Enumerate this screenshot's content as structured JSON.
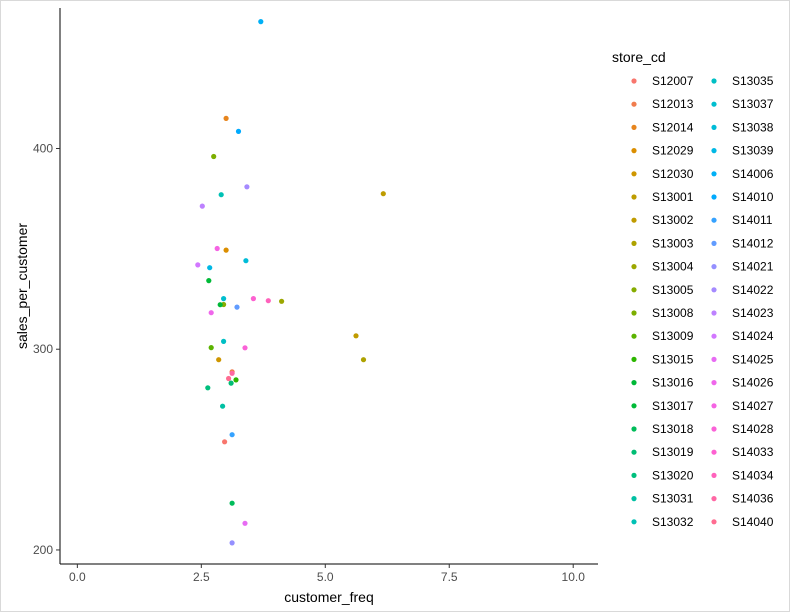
{
  "chart_data": {
    "type": "scatter",
    "title": "",
    "xlabel": "customer_freq",
    "ylabel": "sales_per_customer",
    "xlim": [
      -0.35,
      10.5
    ],
    "ylim": [
      193,
      470
    ],
    "xticks": [
      0,
      2.5,
      5,
      7.5,
      10
    ],
    "xtick_labels": [
      "0.0",
      "2.5",
      "5.0",
      "7.5",
      "10.0"
    ],
    "yticks": [
      200,
      300,
      400
    ],
    "ytick_labels": [
      "200",
      "300",
      "400"
    ],
    "grid": false,
    "legend": {
      "title": "store_cd",
      "placement": "right",
      "columns": 2
    },
    "series": [
      {
        "name": "S12007",
        "color": "#F8766D",
        "points": [
          [
            2.97,
            253.9
          ]
        ]
      },
      {
        "name": "S12013",
        "color": "#F07C4E",
        "points": [
          [
            3.12,
            288.7
          ]
        ]
      },
      {
        "name": "S12014",
        "color": "#E7851E",
        "points": [
          [
            3.0,
            415.0
          ]
        ]
      },
      {
        "name": "S12029",
        "color": "#DB8E00",
        "points": [
          [
            3.0,
            349.4
          ]
        ]
      },
      {
        "name": "S12030",
        "color": "#CE9600",
        "points": [
          [
            2.85,
            294.8
          ]
        ]
      },
      {
        "name": "S13001",
        "color": "#BE9C00",
        "points": [
          [
            6.17,
            377.5
          ]
        ]
      },
      {
        "name": "S13002",
        "color": "#C09B00",
        "points": [
          [
            5.62,
            306.7
          ]
        ]
      },
      {
        "name": "S13003",
        "color": "#AEA200",
        "points": [
          [
            5.77,
            294.8
          ]
        ]
      },
      {
        "name": "S13004",
        "color": "#9CA700",
        "points": [
          [
            4.12,
            323.9
          ]
        ]
      },
      {
        "name": "S13005",
        "color": "#86AC00",
        "points": [
          [
            2.95,
            322.3
          ]
        ]
      },
      {
        "name": "S13008",
        "color": "#7CAE00",
        "points": [
          [
            2.75,
            396.0
          ]
        ]
      },
      {
        "name": "S13009",
        "color": "#5BB300",
        "points": [
          [
            2.7,
            300.8
          ]
        ]
      },
      {
        "name": "S13015",
        "color": "#2CB600",
        "points": [
          [
            3.2,
            284.7
          ]
        ]
      },
      {
        "name": "S13016",
        "color": "#00B837",
        "points": [
          [
            2.88,
            322.2
          ]
        ]
      },
      {
        "name": "S13017",
        "color": "#00BA38",
        "points": [
          [
            2.65,
            334.2
          ]
        ]
      },
      {
        "name": "S13018",
        "color": "#00BC5A",
        "points": [
          [
            3.12,
            223.3
          ]
        ]
      },
      {
        "name": "S13019",
        "color": "#00BD74",
        "points": [
          [
            3.1,
            283.1
          ]
        ]
      },
      {
        "name": "S13020",
        "color": "#00BF7D",
        "points": [
          [
            2.63,
            280.8
          ]
        ]
      },
      {
        "name": "S13031",
        "color": "#00C0A3",
        "points": [
          [
            2.93,
            271.6
          ]
        ]
      },
      {
        "name": "S13032",
        "color": "#00C1B5",
        "points": [
          [
            2.9,
            377.0
          ]
        ]
      },
      {
        "name": "S13035",
        "color": "#00BFC4",
        "points": [
          [
            2.95,
            303.9
          ]
        ]
      },
      {
        "name": "S13037",
        "color": "#00BECF",
        "points": [
          [
            2.95,
            325.2
          ]
        ]
      },
      {
        "name": "S13038",
        "color": "#00BCD8",
        "points": [
          [
            3.4,
            344.1
          ]
        ]
      },
      {
        "name": "S13039",
        "color": "#00B8E5",
        "points": [
          [
            2.67,
            340.6
          ]
        ]
      },
      {
        "name": "S14006",
        "color": "#00B0F6",
        "points": [
          [
            3.7,
            463.2
          ]
        ]
      },
      {
        "name": "S14010",
        "color": "#00AAFE",
        "points": [
          [
            3.25,
            408.5
          ]
        ]
      },
      {
        "name": "S14011",
        "color": "#35A2FF",
        "points": [
          [
            3.12,
            257.4
          ]
        ]
      },
      {
        "name": "S14012",
        "color": "#619CFF",
        "points": [
          [
            3.22,
            321.0
          ]
        ]
      },
      {
        "name": "S14021",
        "color": "#9590FF",
        "points": [
          [
            3.12,
            203.5
          ]
        ]
      },
      {
        "name": "S14022",
        "color": "#A58AFF",
        "points": [
          [
            3.42,
            380.9
          ]
        ]
      },
      {
        "name": "S14023",
        "color": "#BD81FF",
        "points": [
          [
            2.52,
            371.3
          ]
        ]
      },
      {
        "name": "S14024",
        "color": "#D277FF",
        "points": [
          [
            2.43,
            342.0
          ]
        ]
      },
      {
        "name": "S14025",
        "color": "#E76BF3",
        "points": [
          [
            3.38,
            213.3
          ]
        ]
      },
      {
        "name": "S14026",
        "color": "#EF67EB",
        "points": [
          [
            2.7,
            318.2
          ]
        ]
      },
      {
        "name": "S14027",
        "color": "#F564E3",
        "points": [
          [
            2.82,
            350.2
          ]
        ]
      },
      {
        "name": "S14028",
        "color": "#FA62D7",
        "points": [
          [
            3.38,
            300.7
          ]
        ]
      },
      {
        "name": "S14033",
        "color": "#FD61D1",
        "points": [
          [
            3.55,
            325.2
          ]
        ]
      },
      {
        "name": "S14034",
        "color": "#FF62BC",
        "points": [
          [
            3.85,
            324.2
          ]
        ]
      },
      {
        "name": "S14036",
        "color": "#FF67A4",
        "points": [
          [
            3.12,
            288.0
          ]
        ]
      },
      {
        "name": "S14040",
        "color": "#FF6C91",
        "points": [
          [
            3.05,
            285.4
          ]
        ]
      }
    ]
  }
}
